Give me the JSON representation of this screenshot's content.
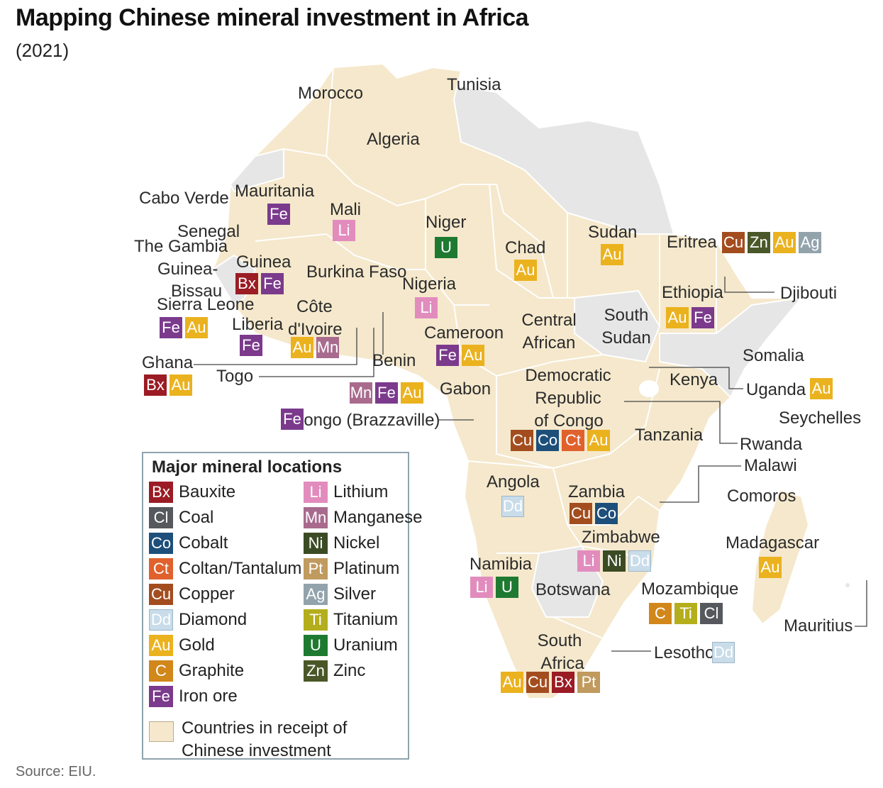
{
  "header": {
    "title": "Mapping Chinese mineral investment in Africa",
    "subtitle": "(2021)"
  },
  "colors": {
    "invested": "#f5e8cc",
    "not_invested": "#e6e6e6",
    "border": "#ffffff",
    "leader_line": "#444444"
  },
  "minerals": {
    "Bx": {
      "name": "Bauxite",
      "color": "#9b1c24"
    },
    "Cl": {
      "name": "Coal",
      "color": "#55585c"
    },
    "Co": {
      "name": "Cobalt",
      "color": "#1d4f7a"
    },
    "Ct": {
      "name": "Coltan/Tantalum",
      "color": "#e0612c"
    },
    "Cu": {
      "name": "Copper",
      "color": "#a34d1f"
    },
    "Dd": {
      "name": "Diamond",
      "color": "#c9dcea"
    },
    "Au": {
      "name": "Gold",
      "color": "#ebb21f"
    },
    "C": {
      "name": "Graphite",
      "color": "#d2871a"
    },
    "Fe": {
      "name": "Iron ore",
      "color": "#7b3a8c"
    },
    "Li": {
      "name": "Lithium",
      "color": "#e28cbe"
    },
    "Mn": {
      "name": "Manganese",
      "color": "#a86b8d"
    },
    "Ni": {
      "name": "Nickel",
      "color": "#3b4b24"
    },
    "Pt": {
      "name": "Platinum",
      "color": "#c09a5e"
    },
    "Ag": {
      "name": "Silver",
      "color": "#93a3ac"
    },
    "Ti": {
      "name": "Titanium",
      "color": "#b4ae1c"
    },
    "U": {
      "name": "Uranium",
      "color": "#1e7a31"
    },
    "Zn": {
      "name": "Zinc",
      "color": "#4a5728"
    }
  },
  "legend": {
    "title": "Major mineral locations",
    "col1": [
      "Bx",
      "Cl",
      "Co",
      "Ct",
      "Cu",
      "Dd",
      "Au",
      "C",
      "Fe"
    ],
    "col2": [
      "Li",
      "Mn",
      "Ni",
      "Pt",
      "Ag",
      "Ti",
      "U",
      "Zn"
    ],
    "receipt_line1": "Countries in receipt of",
    "receipt_line2": "Chinese investment"
  },
  "countries": [
    {
      "name": "Morocco",
      "minerals": []
    },
    {
      "name": "Tunisia",
      "minerals": []
    },
    {
      "name": "Algeria",
      "minerals": []
    },
    {
      "name": "Cabo Verde",
      "minerals": []
    },
    {
      "name": "Mauritania",
      "minerals": [
        "Fe"
      ]
    },
    {
      "name": "Mali",
      "minerals": [
        "Li"
      ]
    },
    {
      "name": "Niger",
      "minerals": [
        "U"
      ]
    },
    {
      "name": "Senegal",
      "minerals": []
    },
    {
      "name": "The Gambia",
      "minerals": []
    },
    {
      "name": "Guinea",
      "minerals": [
        "Bx",
        "Fe"
      ]
    },
    {
      "name": "Guinea-",
      "minerals": []
    },
    {
      "name": "Bissau",
      "minerals": []
    },
    {
      "name": "Burkina Faso",
      "minerals": []
    },
    {
      "name": "Nigeria",
      "minerals": [
        "Li"
      ]
    },
    {
      "name": "Sierra Leone",
      "minerals": [
        "Fe",
        "Au"
      ]
    },
    {
      "name": "Liberia",
      "minerals": [
        "Fe"
      ]
    },
    {
      "name": "Côte",
      "minerals": []
    },
    {
      "name": "d'Ivoire",
      "minerals": [
        "Au",
        "Mn"
      ]
    },
    {
      "name": "Ghana",
      "minerals": [
        "Bx",
        "Au"
      ]
    },
    {
      "name": "Togo",
      "minerals": []
    },
    {
      "name": "Benin",
      "minerals": []
    },
    {
      "name": "Cameroon",
      "minerals": [
        "Fe",
        "Au"
      ]
    },
    {
      "name": "Gabon",
      "minerals": [
        "Mn",
        "Fe",
        "Au"
      ]
    },
    {
      "name": "Congo (Brazzaville)",
      "minerals": [
        "Fe"
      ]
    },
    {
      "name": "Chad",
      "minerals": [
        "Au"
      ]
    },
    {
      "name": "Sudan",
      "minerals": [
        "Au"
      ]
    },
    {
      "name": "Eritrea",
      "minerals": [
        "Cu",
        "Zn",
        "Au",
        "Ag"
      ]
    },
    {
      "name": "Ethiopia",
      "minerals": [
        "Au",
        "Fe"
      ]
    },
    {
      "name": "Djibouti",
      "minerals": []
    },
    {
      "name": "Central",
      "minerals": []
    },
    {
      "name": "African",
      "minerals": []
    },
    {
      "name": "South",
      "minerals": []
    },
    {
      "name": "Sudan",
      "minerals": []
    },
    {
      "name": "Somalia",
      "minerals": []
    },
    {
      "name": "Kenya",
      "minerals": []
    },
    {
      "name": "Uganda",
      "minerals": [
        "Au"
      ]
    },
    {
      "name": "Seychelles",
      "minerals": []
    },
    {
      "name": "Democratic",
      "minerals": []
    },
    {
      "name": "Republic",
      "minerals": []
    },
    {
      "name": "of Congo",
      "minerals": [
        "Cu",
        "Co",
        "Ct",
        "Au"
      ]
    },
    {
      "name": "Tanzania",
      "minerals": []
    },
    {
      "name": "Rwanda",
      "minerals": []
    },
    {
      "name": "Malawi",
      "minerals": []
    },
    {
      "name": "Angola",
      "minerals": [
        "Dd"
      ]
    },
    {
      "name": "Zambia",
      "minerals": [
        "Cu",
        "Co"
      ]
    },
    {
      "name": "Comoros",
      "minerals": []
    },
    {
      "name": "Zimbabwe",
      "minerals": [
        "Li",
        "Ni",
        "Dd"
      ]
    },
    {
      "name": "Madagascar",
      "minerals": [
        "Au"
      ]
    },
    {
      "name": "Namibia",
      "minerals": [
        "Li",
        "U"
      ]
    },
    {
      "name": "Botswana",
      "minerals": []
    },
    {
      "name": "Mozambique",
      "minerals": [
        "C",
        "Ti",
        "Cl"
      ]
    },
    {
      "name": "Mauritius",
      "minerals": []
    },
    {
      "name": "South",
      "minerals": []
    },
    {
      "name": "Africa",
      "minerals": [
        "Au",
        "Cu",
        "Bx",
        "Pt"
      ]
    },
    {
      "name": "Lesotho",
      "minerals": [
        "Dd"
      ]
    }
  ],
  "source": "Source: EIU."
}
